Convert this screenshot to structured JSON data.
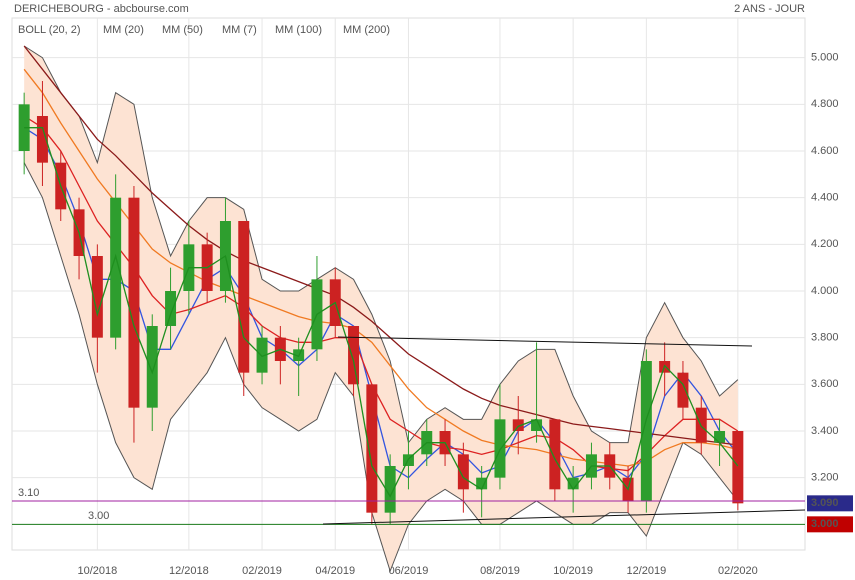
{
  "chart_data": {
    "type": "candlestick",
    "title": "DERICHEBOURG - abcbourse.com",
    "period": "2 ANS - JOUR",
    "categories": [
      null,
      null,
      null,
      null,
      "10/2018",
      null,
      null,
      null,
      null,
      "12/2018",
      null,
      null,
      null,
      "02/2019",
      null,
      null,
      null,
      "04/2019",
      null,
      null,
      null,
      "06/2019",
      null,
      null,
      null,
      null,
      "08/2019",
      null,
      null,
      null,
      "10/2019",
      null,
      null,
      null,
      "12/2019",
      null,
      null,
      null,
      null,
      "02/2020"
    ],
    "candles": {
      "open": [
        4.6,
        4.75,
        4.55,
        4.35,
        4.15,
        3.8,
        4.4,
        3.5,
        3.85,
        4.0,
        4.2,
        4.0,
        4.3,
        3.65,
        3.8,
        3.7,
        3.75,
        4.05,
        3.85,
        3.6,
        3.05,
        3.25,
        3.3,
        3.4,
        3.3,
        3.15,
        3.2,
        3.45,
        3.4,
        3.45,
        3.15,
        3.2,
        3.3,
        3.2,
        3.1,
        3.7,
        3.65,
        3.5,
        3.35,
        3.4
      ],
      "high": [
        4.85,
        4.9,
        4.6,
        4.4,
        4.2,
        4.5,
        4.45,
        3.9,
        4.1,
        4.3,
        4.25,
        4.4,
        4.3,
        3.85,
        3.85,
        3.8,
        4.15,
        4.1,
        3.85,
        3.6,
        3.3,
        3.4,
        3.45,
        3.45,
        3.35,
        3.25,
        3.6,
        3.55,
        3.78,
        3.45,
        3.25,
        3.35,
        3.35,
        3.25,
        3.75,
        3.78,
        3.7,
        3.55,
        3.45,
        3.4
      ],
      "low": [
        4.5,
        4.45,
        4.3,
        4.05,
        3.65,
        3.75,
        3.35,
        3.4,
        3.75,
        3.9,
        3.95,
        3.95,
        3.55,
        3.6,
        3.6,
        3.55,
        3.7,
        3.8,
        3.55,
        3.0,
        3.0,
        3.15,
        3.25,
        3.25,
        3.05,
        3.03,
        3.15,
        3.3,
        3.35,
        3.1,
        3.05,
        3.15,
        3.15,
        3.05,
        3.05,
        3.55,
        3.45,
        3.3,
        3.25,
        3.06
      ],
      "close": [
        4.8,
        4.55,
        4.35,
        4.15,
        3.8,
        4.4,
        3.5,
        3.85,
        4.0,
        4.2,
        4.0,
        4.3,
        3.65,
        3.8,
        3.7,
        3.75,
        4.05,
        3.85,
        3.6,
        3.05,
        3.25,
        3.3,
        3.4,
        3.3,
        3.15,
        3.2,
        3.45,
        3.4,
        3.45,
        3.15,
        3.2,
        3.3,
        3.2,
        3.1,
        3.7,
        3.65,
        3.5,
        3.35,
        3.4,
        3.09
      ],
      "up_color": "#2e9e2e",
      "down_color": "#cc2222"
    },
    "series": [
      {
        "name": "BOLL (20, 2)",
        "color": "#555555",
        "fill": "#fde3d3",
        "upper": [
          5.05,
          5.0,
          4.85,
          4.75,
          4.55,
          4.85,
          4.8,
          4.4,
          4.15,
          4.3,
          4.4,
          4.4,
          4.35,
          4.05,
          4.0,
          4.0,
          4.05,
          4.1,
          4.05,
          3.9,
          3.7,
          3.35,
          3.45,
          3.5,
          3.45,
          3.45,
          3.6,
          3.7,
          3.75,
          3.75,
          3.55,
          3.4,
          3.35,
          3.35,
          3.8,
          3.95,
          3.8,
          3.7,
          3.55,
          3.62
        ],
        "lower": [
          4.55,
          4.4,
          4.15,
          3.9,
          3.6,
          3.35,
          3.2,
          3.15,
          3.45,
          3.55,
          3.65,
          3.8,
          3.6,
          3.5,
          3.45,
          3.4,
          3.45,
          3.65,
          3.55,
          3.05,
          2.8,
          3.0,
          3.1,
          3.15,
          3.1,
          3.0,
          3.0,
          3.05,
          3.1,
          3.05,
          3.0,
          3.0,
          3.05,
          3.05,
          2.95,
          3.15,
          3.35,
          3.3,
          3.2,
          3.1
        ]
      },
      {
        "name": "MM (20)",
        "color": "#3355e0",
        "values": [
          4.7,
          4.65,
          4.5,
          4.3,
          4.05,
          4.05,
          4.0,
          3.75,
          3.75,
          3.9,
          4.05,
          4.1,
          3.98,
          3.8,
          3.75,
          3.68,
          3.75,
          3.9,
          3.85,
          3.55,
          3.25,
          3.2,
          3.28,
          3.35,
          3.3,
          3.22,
          3.25,
          3.4,
          3.45,
          3.35,
          3.2,
          3.22,
          3.25,
          3.2,
          3.3,
          3.55,
          3.65,
          3.55,
          3.4,
          3.3
        ]
      },
      {
        "name": "MM (50)",
        "color": "#dd2222",
        "values": [
          4.75,
          4.7,
          4.6,
          4.45,
          4.3,
          4.2,
          4.1,
          3.98,
          3.9,
          3.92,
          3.95,
          3.98,
          3.93,
          3.85,
          3.8,
          3.78,
          3.78,
          3.8,
          3.8,
          3.6,
          3.45,
          3.4,
          3.35,
          3.33,
          3.32,
          3.3,
          3.32,
          3.35,
          3.38,
          3.37,
          3.32,
          3.25,
          3.24,
          3.23,
          3.3,
          3.38,
          3.45,
          3.45,
          3.45,
          3.4
        ]
      },
      {
        "name": "MM (7)",
        "color": "#1f8f1f",
        "values": [
          4.7,
          4.7,
          4.45,
          4.25,
          3.9,
          4.15,
          3.85,
          3.65,
          3.9,
          4.1,
          4.1,
          4.15,
          3.8,
          3.72,
          3.75,
          3.72,
          3.9,
          3.95,
          3.7,
          3.25,
          3.12,
          3.28,
          3.35,
          3.35,
          3.2,
          3.15,
          3.32,
          3.42,
          3.45,
          3.28,
          3.15,
          3.25,
          3.25,
          3.15,
          3.45,
          3.68,
          3.6,
          3.42,
          3.35,
          3.25
        ]
      },
      {
        "name": "MM (100)",
        "color": "#f07a22",
        "values": [
          4.95,
          4.85,
          4.72,
          4.6,
          4.48,
          4.38,
          4.28,
          4.18,
          4.12,
          4.08,
          4.04,
          4.01,
          3.98,
          3.95,
          3.92,
          3.89,
          3.87,
          3.86,
          3.84,
          3.78,
          3.68,
          3.58,
          3.5,
          3.45,
          3.4,
          3.36,
          3.34,
          3.33,
          3.32,
          3.3,
          3.28,
          3.27,
          3.26,
          3.25,
          3.27,
          3.32,
          3.35,
          3.35,
          3.34,
          3.32
        ]
      },
      {
        "name": "MM (200)",
        "color": "#8b1a1a",
        "values": [
          5.05,
          4.95,
          4.85,
          4.75,
          4.65,
          4.58,
          4.5,
          4.42,
          4.35,
          4.28,
          4.22,
          4.17,
          4.13,
          4.1,
          4.07,
          4.04,
          4.01,
          3.98,
          3.93,
          3.87,
          3.8,
          3.73,
          3.68,
          3.63,
          3.58,
          3.54,
          3.51,
          3.49,
          3.47,
          3.45,
          3.43,
          3.42,
          3.41,
          3.4,
          3.39,
          3.38,
          3.37,
          3.36,
          3.35,
          3.34
        ]
      }
    ],
    "levels": [
      {
        "value": 3.1,
        "label": "3.10",
        "color": "#a020a0"
      },
      {
        "value": 3.0,
        "label": "3.00",
        "color": "#1a7a1a"
      }
    ],
    "price_tags": [
      {
        "value": 3.09,
        "label": "3.090",
        "color": "#2a2a8a"
      },
      {
        "value": 3.0,
        "label": "3.000",
        "color": "#c00000"
      }
    ],
    "ylim": [
      2.89,
      5.17
    ],
    "yticks": [
      {
        "value": 3.2,
        "label": "3.200"
      },
      {
        "value": 3.4,
        "label": "3.400"
      },
      {
        "value": 3.6,
        "label": "3.600"
      },
      {
        "value": 3.8,
        "label": "3.800"
      },
      {
        "value": 4,
        "label": "4.000"
      },
      {
        "value": 4.2,
        "label": "4.200"
      },
      {
        "value": 4.4,
        "label": "4.400"
      },
      {
        "value": 4.6,
        "label": "4.600"
      },
      {
        "value": 4.8,
        "label": "4.800"
      },
      {
        "value": 5,
        "label": "5.000"
      }
    ],
    "grid": true
  }
}
